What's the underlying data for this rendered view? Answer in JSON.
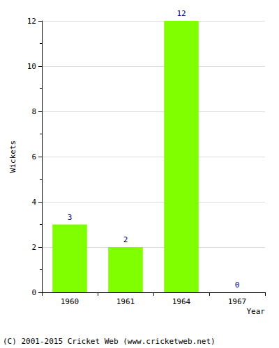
{
  "chart_data": {
    "type": "bar",
    "categories": [
      "1960",
      "1961",
      "1964",
      "1967"
    ],
    "values": [
      3,
      2,
      12,
      0
    ],
    "color": "#80ff00",
    "x_label": "Year",
    "y_label": "Wickets",
    "ylim": [
      0,
      12
    ],
    "yticks": [
      0,
      2,
      4,
      6,
      8,
      10,
      12
    ],
    "grid": true,
    "data_labels": true,
    "annotations": [
      "(C) 2001-2015 Cricket Web (www.cricketweb.net)"
    ]
  }
}
